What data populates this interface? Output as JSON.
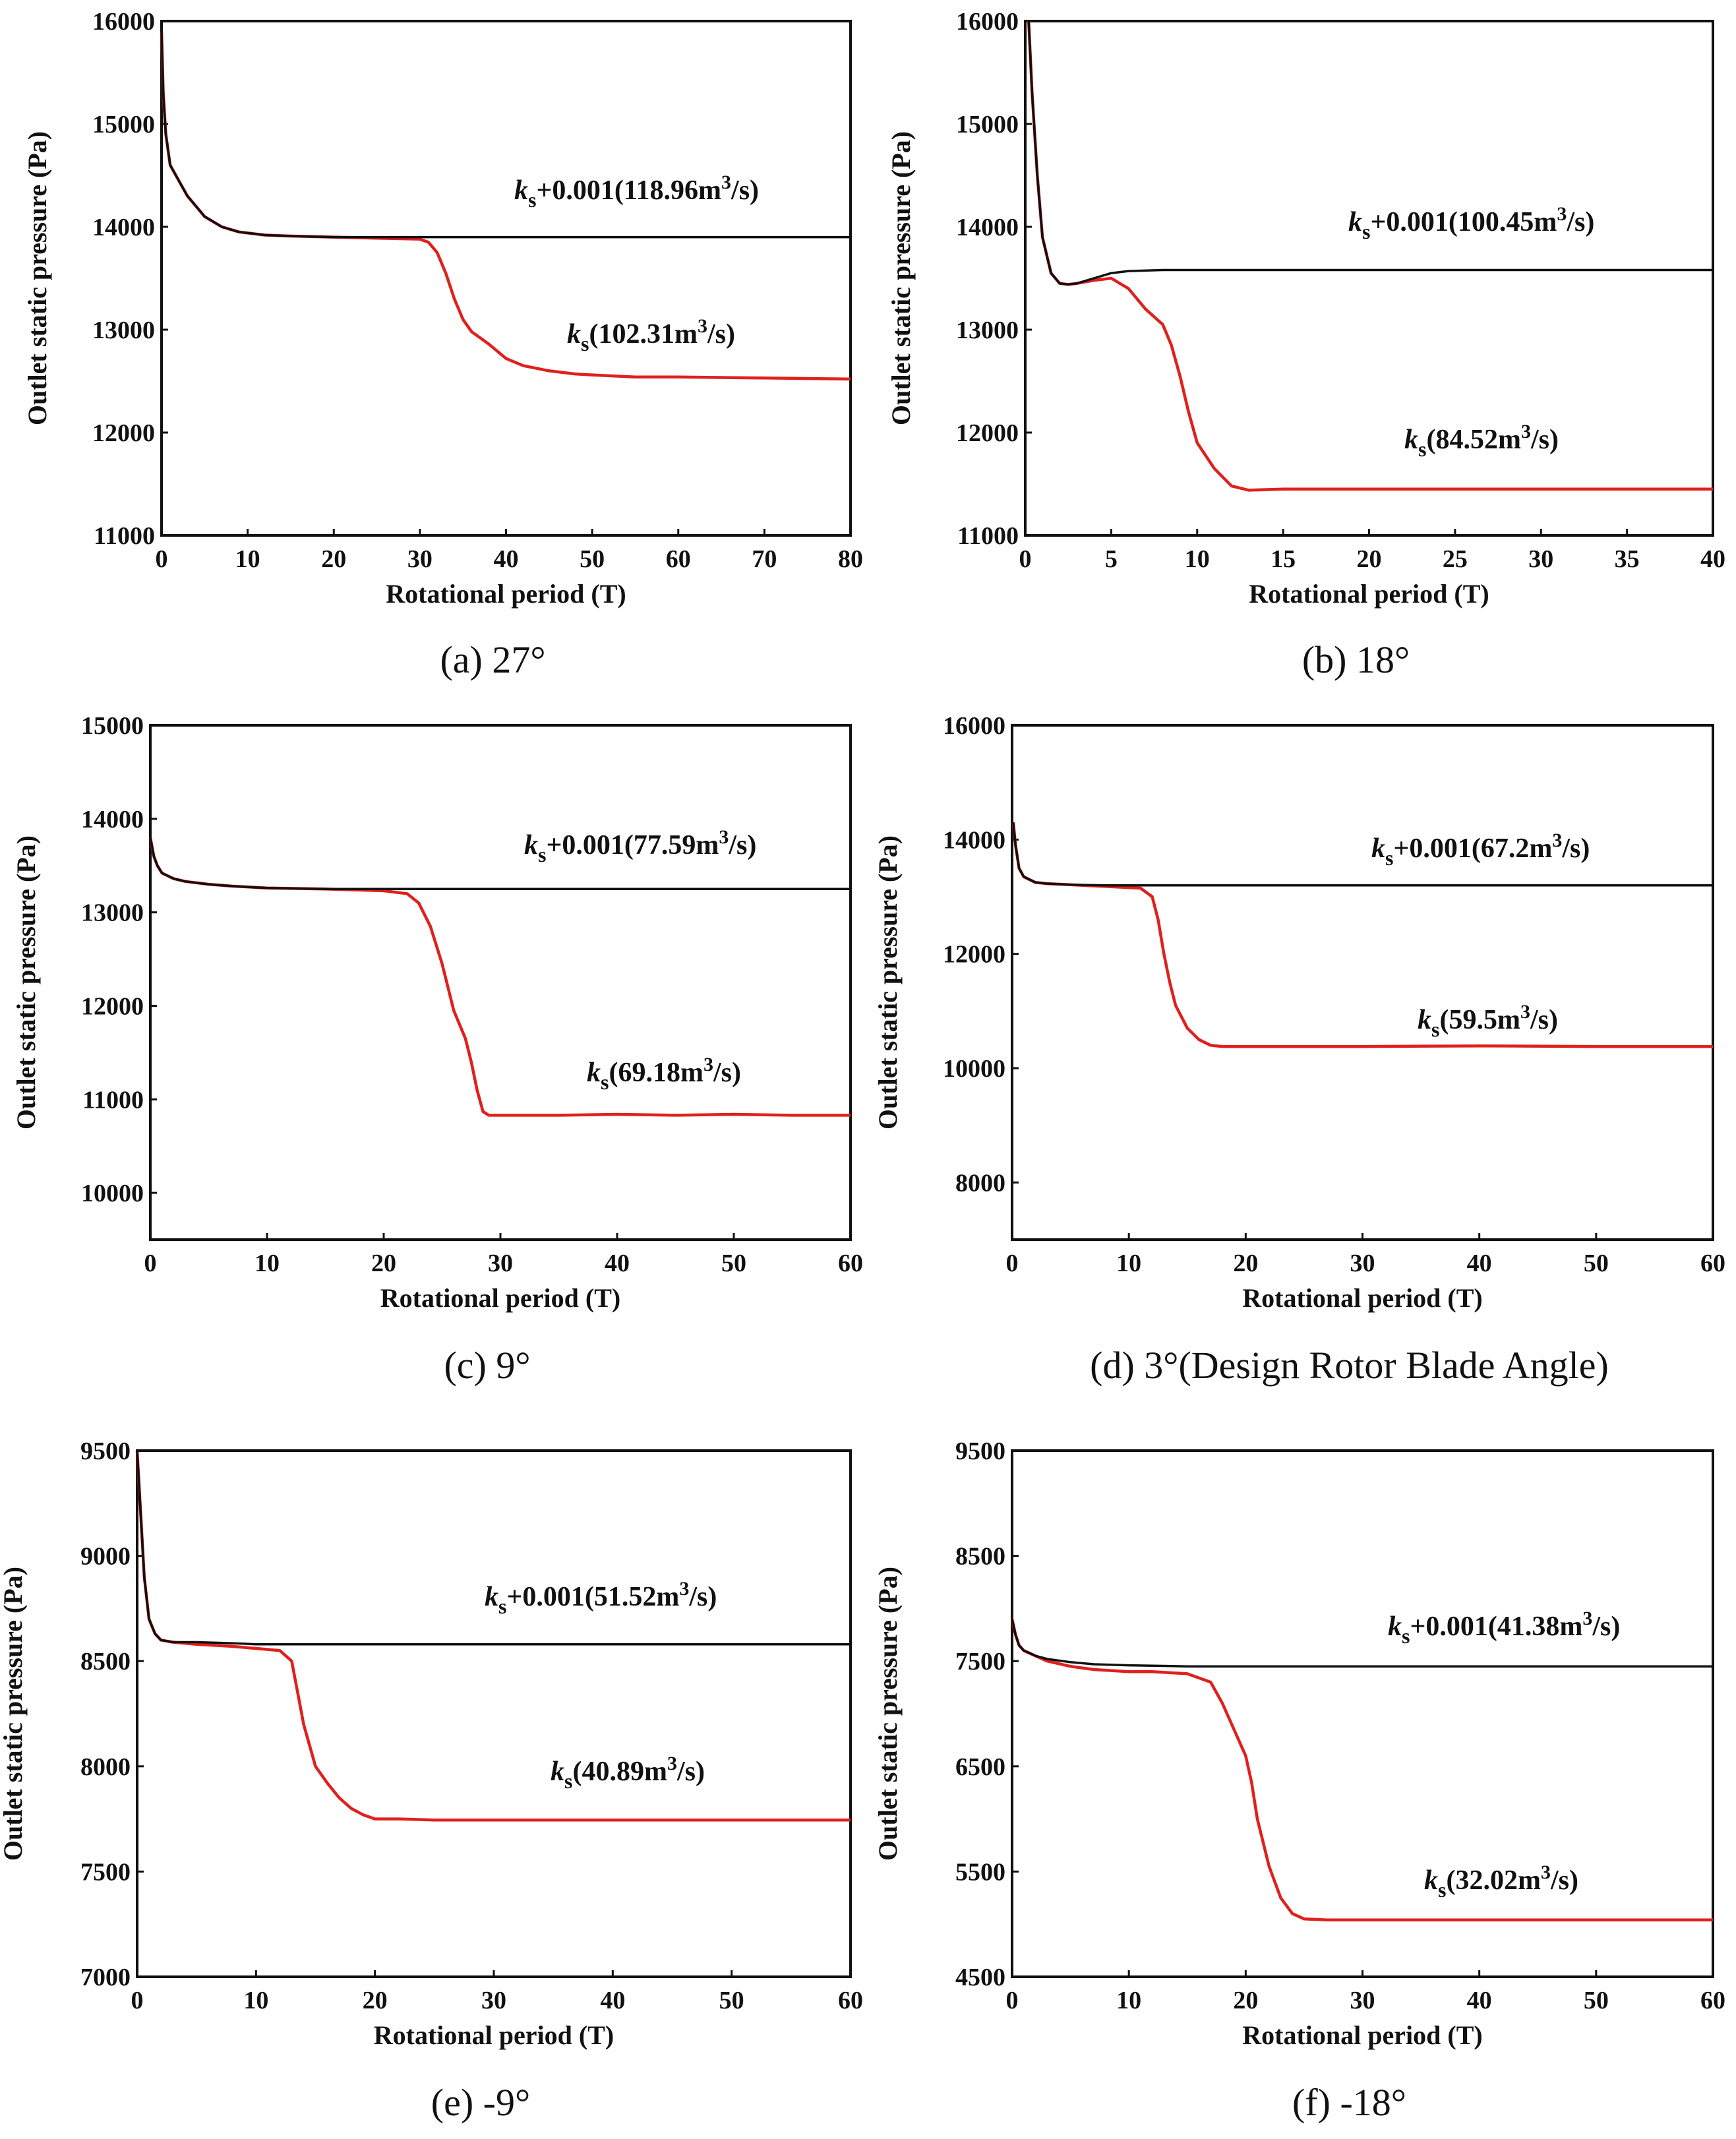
{
  "chart_data": [
    {
      "type": "line",
      "caption": "(a) 27°",
      "xlabel": "Rotational period (T)",
      "ylabel": "Outlet static pressure (Pa)",
      "xlim": [
        0,
        80
      ],
      "ylim": [
        11000,
        16000
      ],
      "xticks": [
        "0",
        "10",
        "20",
        "30",
        "40",
        "50",
        "60",
        "70",
        "80"
      ],
      "yticks": [
        "11000",
        "12000",
        "13000",
        "14000",
        "15000",
        "16000"
      ],
      "series": [
        {
          "name_prefix": "k",
          "name_sub": "s",
          "name_suffix": "+0.001(118.96m",
          "name_sup": "3",
          "name_tail": "/s)",
          "color": "#111111",
          "x": [
            0,
            0.2,
            0.5,
            1,
            2,
            3,
            4,
            5,
            7,
            9,
            12,
            15,
            20,
            25,
            30,
            40,
            60,
            80
          ],
          "y": [
            15900,
            15300,
            14900,
            14600,
            14450,
            14300,
            14200,
            14100,
            14000,
            13950,
            13920,
            13910,
            13900,
            13900,
            13900,
            13900,
            13900,
            13900
          ]
        },
        {
          "name_prefix": "k",
          "name_sub": "s",
          "name_suffix": "(102.31m",
          "name_sup": "3",
          "name_tail": "/s)",
          "color": "#e0201c",
          "x": [
            0,
            0.2,
            0.5,
            1,
            2,
            3,
            4,
            5,
            7,
            9,
            12,
            15,
            20,
            25,
            30,
            31,
            32,
            33,
            34,
            35,
            36,
            38,
            40,
            42,
            45,
            48,
            50,
            55,
            60,
            70,
            80
          ],
          "y": [
            15900,
            15300,
            14900,
            14600,
            14450,
            14300,
            14200,
            14100,
            14000,
            13950,
            13920,
            13910,
            13900,
            13890,
            13880,
            13850,
            13750,
            13550,
            13300,
            13100,
            12980,
            12860,
            12720,
            12650,
            12600,
            12570,
            12560,
            12540,
            12540,
            12530,
            12520
          ]
        }
      ]
    },
    {
      "type": "line",
      "caption": "(b) 18°",
      "xlabel": "Rotational period (T)",
      "ylabel": "Outlet static pressure (Pa)",
      "xlim": [
        0,
        40
      ],
      "ylim": [
        11000,
        16000
      ],
      "xticks": [
        "0",
        "5",
        "10",
        "15",
        "20",
        "25",
        "30",
        "35",
        "40"
      ],
      "yticks": [
        "11000",
        "12000",
        "13000",
        "14000",
        "15000",
        "16000"
      ],
      "series": [
        {
          "name_prefix": "k",
          "name_sub": "s",
          "name_suffix": "+0.001(100.45m",
          "name_sup": "3",
          "name_tail": "/s)",
          "color": "#111111",
          "x": [
            0.2,
            0.4,
            0.7,
            1,
            1.5,
            2,
            2.5,
            3,
            4,
            5,
            6,
            8,
            10,
            15,
            20,
            30,
            40
          ],
          "y": [
            16000,
            15300,
            14500,
            13900,
            13550,
            13450,
            13440,
            13450,
            13500,
            13550,
            13570,
            13580,
            13580,
            13580,
            13580,
            13580,
            13580
          ]
        },
        {
          "name_prefix": "k",
          "name_sub": "s",
          "name_suffix": "(84.52m",
          "name_sup": "3",
          "name_tail": "/s)",
          "color": "#e0201c",
          "x": [
            0.2,
            0.4,
            0.7,
            1,
            1.5,
            2,
            2.5,
            3,
            4,
            5,
            6,
            7,
            8,
            8.5,
            9,
            9.5,
            10,
            11,
            12,
            13,
            15,
            20,
            25,
            30,
            35,
            40
          ],
          "y": [
            16000,
            15300,
            14500,
            13900,
            13550,
            13450,
            13440,
            13450,
            13480,
            13500,
            13400,
            13200,
            13050,
            12850,
            12550,
            12200,
            11900,
            11650,
            11480,
            11440,
            11450,
            11450,
            11450,
            11450,
            11450,
            11450
          ]
        }
      ]
    },
    {
      "type": "line",
      "caption": "(c) 9°",
      "xlabel": "Rotational period (T)",
      "ylabel": "Outlet static pressure (Pa)",
      "xlim": [
        0,
        60
      ],
      "ylim": [
        9500,
        15000
      ],
      "xticks": [
        "0",
        "10",
        "20",
        "30",
        "40",
        "50",
        "60"
      ],
      "yticks": [
        "10000",
        "11000",
        "12000",
        "13000",
        "14000",
        "15000"
      ],
      "series": [
        {
          "name_prefix": "k",
          "name_sub": "s",
          "name_suffix": "+0.001(77.59m",
          "name_sup": "3",
          "name_tail": "/s)",
          "color": "#111111",
          "x": [
            0,
            0.3,
            0.6,
            1,
            2,
            3,
            5,
            7,
            10,
            15,
            20,
            30,
            40,
            50,
            60
          ],
          "y": [
            13800,
            13600,
            13500,
            13420,
            13360,
            13330,
            13300,
            13280,
            13260,
            13250,
            13250,
            13250,
            13250,
            13250,
            13250
          ]
        },
        {
          "name_prefix": "k",
          "name_sub": "s",
          "name_suffix": "(69.18m",
          "name_sup": "3",
          "name_tail": "/s)",
          "color": "#e0201c",
          "x": [
            0,
            0.3,
            0.6,
            1,
            2,
            3,
            5,
            7,
            10,
            15,
            20,
            22,
            23,
            24,
            25,
            26,
            27,
            27.5,
            28,
            28.5,
            29,
            30,
            35,
            40,
            45,
            50,
            55,
            60
          ],
          "y": [
            13800,
            13600,
            13500,
            13420,
            13360,
            13330,
            13300,
            13280,
            13260,
            13250,
            13230,
            13200,
            13100,
            12850,
            12450,
            11950,
            11650,
            11400,
            11100,
            10870,
            10830,
            10830,
            10830,
            10840,
            10830,
            10840,
            10830,
            10830
          ]
        }
      ]
    },
    {
      "type": "line",
      "caption": "(d) 3°(Design Rotor Blade Angle)",
      "xlabel": "Rotational period (T)",
      "ylabel": "Outlet static pressure (Pa)",
      "xlim": [
        0,
        60
      ],
      "ylim": [
        7000,
        16000
      ],
      "xticks": [
        "0",
        "10",
        "20",
        "30",
        "40",
        "50",
        "60"
      ],
      "yticks": [
        "8000",
        "10000",
        "12000",
        "14000",
        "16000"
      ],
      "series": [
        {
          "name_prefix": "k",
          "name_sub": "s",
          "name_suffix": "+0.001(67.2m",
          "name_sup": "3",
          "name_tail": "/s)",
          "color": "#111111",
          "x": [
            0.1,
            0.3,
            0.6,
            1,
            2,
            3,
            5,
            8,
            10,
            15,
            20,
            30,
            40,
            50,
            60
          ],
          "y": [
            14300,
            13900,
            13500,
            13350,
            13250,
            13230,
            13210,
            13200,
            13200,
            13200,
            13200,
            13200,
            13200,
            13200,
            13200
          ]
        },
        {
          "name_prefix": "k",
          "name_sub": "s",
          "name_suffix": "(59.5m",
          "name_sup": "3",
          "name_tail": "/s)",
          "color": "#e0201c",
          "x": [
            0.1,
            0.3,
            0.6,
            1,
            2,
            3,
            5,
            8,
            11,
            12,
            12.5,
            13,
            13.5,
            14,
            15,
            16,
            17,
            18,
            20,
            30,
            40,
            50,
            60
          ],
          "y": [
            14300,
            13900,
            13500,
            13350,
            13250,
            13230,
            13210,
            13180,
            13150,
            13000,
            12600,
            12000,
            11500,
            11100,
            10700,
            10500,
            10400,
            10380,
            10380,
            10380,
            10390,
            10380,
            10380
          ]
        }
      ]
    },
    {
      "type": "line",
      "caption": "(e) -9°",
      "xlabel": "Rotational period (T)",
      "ylabel": "Outlet static pressure (Pa)",
      "xlim": [
        0,
        60
      ],
      "ylim": [
        7000,
        9500
      ],
      "xticks": [
        "0",
        "10",
        "20",
        "30",
        "40",
        "50",
        "60"
      ],
      "yticks": [
        "7000",
        "7500",
        "8000",
        "8500",
        "9000",
        "9500"
      ],
      "series": [
        {
          "name_prefix": "k",
          "name_sub": "s",
          "name_suffix": "+0.001(51.52m",
          "name_sup": "3",
          "name_tail": "/s)",
          "color": "#111111",
          "x": [
            0,
            0.3,
            0.6,
            1,
            1.5,
            2,
            3,
            5,
            8,
            10,
            13,
            15,
            20,
            30,
            40,
            50,
            60
          ],
          "y": [
            9500,
            9200,
            8900,
            8700,
            8630,
            8600,
            8590,
            8590,
            8585,
            8580,
            8580,
            8580,
            8580,
            8580,
            8580,
            8580,
            8580
          ]
        },
        {
          "name_prefix": "k",
          "name_sub": "s",
          "name_suffix": "(40.89m",
          "name_sup": "3",
          "name_tail": "/s)",
          "color": "#e0201c",
          "x": [
            0,
            0.3,
            0.6,
            1,
            1.5,
            2,
            3,
            5,
            8,
            10,
            12,
            13,
            13.5,
            14,
            15,
            16,
            17,
            18,
            19,
            20,
            22,
            25,
            30,
            40,
            50,
            60
          ],
          "y": [
            9500,
            9200,
            8900,
            8700,
            8630,
            8600,
            8590,
            8580,
            8570,
            8560,
            8550,
            8500,
            8350,
            8200,
            8000,
            7920,
            7850,
            7800,
            7770,
            7750,
            7750,
            7745,
            7745,
            7745,
            7745,
            7745
          ]
        }
      ]
    },
    {
      "type": "line",
      "caption": "(f) -18°",
      "xlabel": "Rotational period (T)",
      "ylabel": "Outlet static pressure (Pa)",
      "xlim": [
        0,
        60
      ],
      "ylim": [
        4500,
        9500
      ],
      "xticks": [
        "0",
        "10",
        "20",
        "30",
        "40",
        "50",
        "60"
      ],
      "yticks": [
        "4500",
        "5500",
        "6500",
        "7500",
        "8500",
        "9500"
      ],
      "series": [
        {
          "name_prefix": "k",
          "name_sub": "s",
          "name_suffix": "+0.001(41.38m",
          "name_sup": "3",
          "name_tail": "/s)",
          "color": "#111111",
          "x": [
            0,
            0.3,
            0.6,
            1,
            2,
            3,
            5,
            7,
            10,
            15,
            20,
            30,
            40,
            50,
            60
          ],
          "y": [
            7900,
            7750,
            7650,
            7600,
            7550,
            7520,
            7490,
            7470,
            7460,
            7450,
            7450,
            7450,
            7450,
            7450,
            7450
          ]
        },
        {
          "name_prefix": "k",
          "name_sub": "s",
          "name_suffix": "(32.02m",
          "name_sup": "3",
          "name_tail": "/s)",
          "color": "#e0201c",
          "x": [
            0,
            0.3,
            0.6,
            1,
            2,
            3,
            5,
            7,
            10,
            12,
            15,
            17,
            18,
            19,
            20,
            20.5,
            21,
            22,
            23,
            24,
            25,
            27,
            30,
            40,
            50,
            60
          ],
          "y": [
            7900,
            7750,
            7650,
            7600,
            7550,
            7500,
            7450,
            7420,
            7400,
            7400,
            7380,
            7300,
            7100,
            6850,
            6600,
            6350,
            6000,
            5550,
            5250,
            5100,
            5050,
            5040,
            5040,
            5040,
            5040,
            5040
          ]
        }
      ]
    }
  ]
}
